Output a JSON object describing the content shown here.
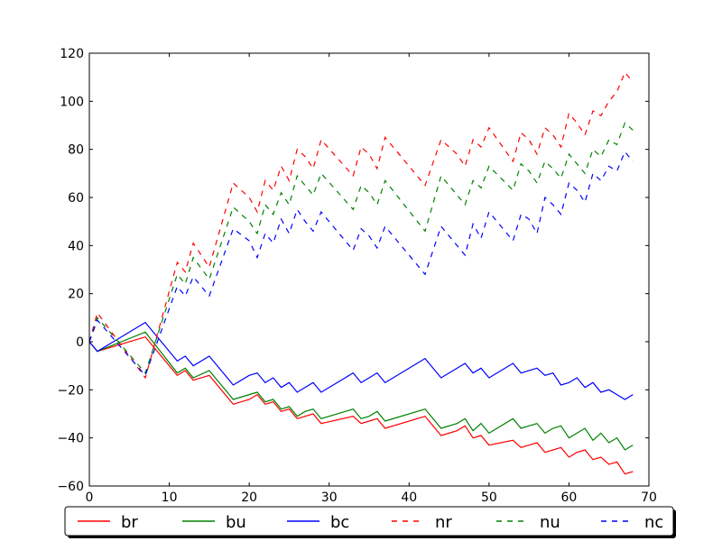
{
  "chart_data": {
    "type": "line",
    "title": "",
    "xlabel": "",
    "ylabel": "",
    "xlim": [
      0,
      70
    ],
    "ylim": [
      -60,
      120
    ],
    "xticks": [
      "0",
      "10",
      "20",
      "30",
      "40",
      "50",
      "60",
      "70"
    ],
    "yticks": [
      "−60",
      "−40",
      "−20",
      "0",
      "20",
      "40",
      "60",
      "80",
      "100",
      "120"
    ],
    "grid": false,
    "legend_position": "bottom",
    "series": [
      {
        "name": "br",
        "color": "#ff0000",
        "style": "solid",
        "points": [
          [
            0,
            0
          ],
          [
            1,
            -4
          ],
          [
            7,
            2
          ],
          [
            11,
            -14
          ],
          [
            12,
            -12
          ],
          [
            13,
            -16
          ],
          [
            15,
            -14
          ],
          [
            18,
            -26
          ],
          [
            20,
            -24
          ],
          [
            21,
            -22
          ],
          [
            22,
            -26
          ],
          [
            23,
            -25
          ],
          [
            24,
            -29
          ],
          [
            25,
            -28
          ],
          [
            26,
            -32
          ],
          [
            27,
            -31
          ],
          [
            28,
            -30
          ],
          [
            29,
            -34
          ],
          [
            33,
            -31
          ],
          [
            34,
            -34
          ],
          [
            35,
            -33
          ],
          [
            36,
            -32
          ],
          [
            37,
            -36
          ],
          [
            42,
            -31
          ],
          [
            44,
            -39
          ],
          [
            46,
            -37
          ],
          [
            47,
            -35
          ],
          [
            48,
            -40
          ],
          [
            49,
            -39
          ],
          [
            50,
            -43
          ],
          [
            53,
            -41
          ],
          [
            54,
            -44
          ],
          [
            55,
            -43
          ],
          [
            56,
            -42
          ],
          [
            57,
            -46
          ],
          [
            58,
            -45
          ],
          [
            59,
            -44
          ],
          [
            60,
            -48
          ],
          [
            61,
            -46
          ],
          [
            62,
            -45
          ],
          [
            63,
            -49
          ],
          [
            64,
            -48
          ],
          [
            65,
            -51
          ],
          [
            66,
            -50
          ],
          [
            67,
            -55
          ],
          [
            68,
            -54
          ]
        ]
      },
      {
        "name": "bu",
        "color": "#008000",
        "style": "solid",
        "points": [
          [
            0,
            0
          ],
          [
            1,
            -4
          ],
          [
            7,
            4
          ],
          [
            11,
            -13
          ],
          [
            12,
            -11
          ],
          [
            13,
            -15
          ],
          [
            15,
            -12
          ],
          [
            18,
            -24
          ],
          [
            21,
            -21
          ],
          [
            22,
            -25
          ],
          [
            23,
            -24
          ],
          [
            24,
            -28
          ],
          [
            25,
            -27
          ],
          [
            26,
            -31
          ],
          [
            27,
            -29
          ],
          [
            28,
            -28
          ],
          [
            29,
            -32
          ],
          [
            33,
            -28
          ],
          [
            34,
            -32
          ],
          [
            35,
            -31
          ],
          [
            36,
            -29
          ],
          [
            37,
            -33
          ],
          [
            42,
            -28
          ],
          [
            44,
            -36
          ],
          [
            46,
            -34
          ],
          [
            47,
            -32
          ],
          [
            48,
            -37
          ],
          [
            49,
            -34
          ],
          [
            50,
            -38
          ],
          [
            53,
            -32
          ],
          [
            54,
            -36
          ],
          [
            55,
            -35
          ],
          [
            56,
            -34
          ],
          [
            57,
            -38
          ],
          [
            58,
            -36
          ],
          [
            59,
            -35
          ],
          [
            60,
            -40
          ],
          [
            61,
            -38
          ],
          [
            62,
            -36
          ],
          [
            63,
            -41
          ],
          [
            64,
            -38
          ],
          [
            65,
            -42
          ],
          [
            66,
            -40
          ],
          [
            67,
            -45
          ],
          [
            68,
            -43
          ]
        ]
      },
      {
        "name": "bc",
        "color": "#0000ff",
        "style": "solid",
        "points": [
          [
            0,
            0
          ],
          [
            1,
            -4
          ],
          [
            7,
            8
          ],
          [
            11,
            -8
          ],
          [
            12,
            -6
          ],
          [
            13,
            -10
          ],
          [
            15,
            -6
          ],
          [
            18,
            -18
          ],
          [
            20,
            -14
          ],
          [
            21,
            -13
          ],
          [
            22,
            -17
          ],
          [
            23,
            -15
          ],
          [
            24,
            -19
          ],
          [
            25,
            -17
          ],
          [
            26,
            -21
          ],
          [
            27,
            -19
          ],
          [
            28,
            -17
          ],
          [
            29,
            -21
          ],
          [
            33,
            -13
          ],
          [
            34,
            -17
          ],
          [
            35,
            -15
          ],
          [
            36,
            -13
          ],
          [
            37,
            -17
          ],
          [
            42,
            -7
          ],
          [
            44,
            -15
          ],
          [
            47,
            -9
          ],
          [
            48,
            -13
          ],
          [
            49,
            -11
          ],
          [
            50,
            -15
          ],
          [
            53,
            -9
          ],
          [
            54,
            -13
          ],
          [
            56,
            -11
          ],
          [
            57,
            -14
          ],
          [
            58,
            -13
          ],
          [
            59,
            -18
          ],
          [
            60,
            -17
          ],
          [
            61,
            -15
          ],
          [
            62,
            -19
          ],
          [
            63,
            -17
          ],
          [
            64,
            -21
          ],
          [
            65,
            -20
          ],
          [
            66,
            -22
          ],
          [
            67,
            -24
          ],
          [
            68,
            -22
          ]
        ]
      },
      {
        "name": "nr",
        "color": "#ff0000",
        "style": "dashed",
        "points": [
          [
            0,
            0
          ],
          [
            1,
            12
          ],
          [
            7,
            -15
          ],
          [
            11,
            33
          ],
          [
            12,
            29
          ],
          [
            13,
            41
          ],
          [
            15,
            31
          ],
          [
            18,
            66
          ],
          [
            20,
            60
          ],
          [
            21,
            54
          ],
          [
            22,
            67
          ],
          [
            23,
            63
          ],
          [
            24,
            73
          ],
          [
            25,
            67
          ],
          [
            26,
            80
          ],
          [
            27,
            77
          ],
          [
            28,
            72
          ],
          [
            29,
            84
          ],
          [
            33,
            69
          ],
          [
            34,
            81
          ],
          [
            35,
            78
          ],
          [
            36,
            72
          ],
          [
            37,
            85
          ],
          [
            42,
            65
          ],
          [
            44,
            84
          ],
          [
            46,
            78
          ],
          [
            47,
            73
          ],
          [
            48,
            84
          ],
          [
            49,
            81
          ],
          [
            50,
            89
          ],
          [
            53,
            75
          ],
          [
            54,
            87
          ],
          [
            55,
            84
          ],
          [
            56,
            78
          ],
          [
            57,
            89
          ],
          [
            58,
            86
          ],
          [
            59,
            81
          ],
          [
            60,
            95
          ],
          [
            61,
            91
          ],
          [
            62,
            86
          ],
          [
            63,
            96
          ],
          [
            64,
            94
          ],
          [
            65,
            100
          ],
          [
            66,
            104
          ],
          [
            67,
            112
          ],
          [
            68,
            108
          ]
        ]
      },
      {
        "name": "nu",
        "color": "#008000",
        "style": "dashed",
        "points": [
          [
            0,
            0
          ],
          [
            1,
            10
          ],
          [
            7,
            -13
          ],
          [
            11,
            28
          ],
          [
            12,
            24
          ],
          [
            13,
            35
          ],
          [
            15,
            26
          ],
          [
            18,
            56
          ],
          [
            20,
            50
          ],
          [
            21,
            45
          ],
          [
            22,
            57
          ],
          [
            23,
            53
          ],
          [
            24,
            62
          ],
          [
            25,
            57
          ],
          [
            26,
            69
          ],
          [
            27,
            65
          ],
          [
            28,
            61
          ],
          [
            29,
            70
          ],
          [
            33,
            55
          ],
          [
            34,
            65
          ],
          [
            35,
            62
          ],
          [
            36,
            57
          ],
          [
            37,
            67
          ],
          [
            42,
            46
          ],
          [
            44,
            69
          ],
          [
            46,
            61
          ],
          [
            47,
            57
          ],
          [
            48,
            67
          ],
          [
            49,
            64
          ],
          [
            50,
            73
          ],
          [
            53,
            63
          ],
          [
            54,
            74
          ],
          [
            55,
            71
          ],
          [
            56,
            66
          ],
          [
            57,
            75
          ],
          [
            58,
            72
          ],
          [
            59,
            68
          ],
          [
            60,
            78
          ],
          [
            61,
            74
          ],
          [
            62,
            70
          ],
          [
            63,
            80
          ],
          [
            64,
            77
          ],
          [
            65,
            84
          ],
          [
            66,
            82
          ],
          [
            67,
            91
          ],
          [
            68,
            88
          ]
        ]
      },
      {
        "name": "nc",
        "color": "#0000ff",
        "style": "dashed",
        "points": [
          [
            0,
            0
          ],
          [
            1,
            9
          ],
          [
            7,
            -14
          ],
          [
            11,
            23
          ],
          [
            12,
            19
          ],
          [
            13,
            27
          ],
          [
            15,
            19
          ],
          [
            18,
            47
          ],
          [
            20,
            42
          ],
          [
            21,
            35
          ],
          [
            22,
            45
          ],
          [
            23,
            41
          ],
          [
            24,
            51
          ],
          [
            25,
            45
          ],
          [
            26,
            55
          ],
          [
            27,
            50
          ],
          [
            28,
            46
          ],
          [
            29,
            54
          ],
          [
            33,
            38
          ],
          [
            34,
            47
          ],
          [
            35,
            44
          ],
          [
            36,
            39
          ],
          [
            37,
            48
          ],
          [
            42,
            28
          ],
          [
            44,
            48
          ],
          [
            46,
            40
          ],
          [
            47,
            36
          ],
          [
            48,
            49
          ],
          [
            49,
            43
          ],
          [
            50,
            54
          ],
          [
            53,
            42
          ],
          [
            54,
            53
          ],
          [
            55,
            51
          ],
          [
            56,
            45
          ],
          [
            57,
            60
          ],
          [
            58,
            57
          ],
          [
            59,
            53
          ],
          [
            60,
            66
          ],
          [
            61,
            63
          ],
          [
            62,
            58
          ],
          [
            63,
            70
          ],
          [
            64,
            67
          ],
          [
            65,
            73
          ],
          [
            66,
            71
          ],
          [
            67,
            79
          ],
          [
            68,
            75
          ]
        ]
      }
    ]
  }
}
